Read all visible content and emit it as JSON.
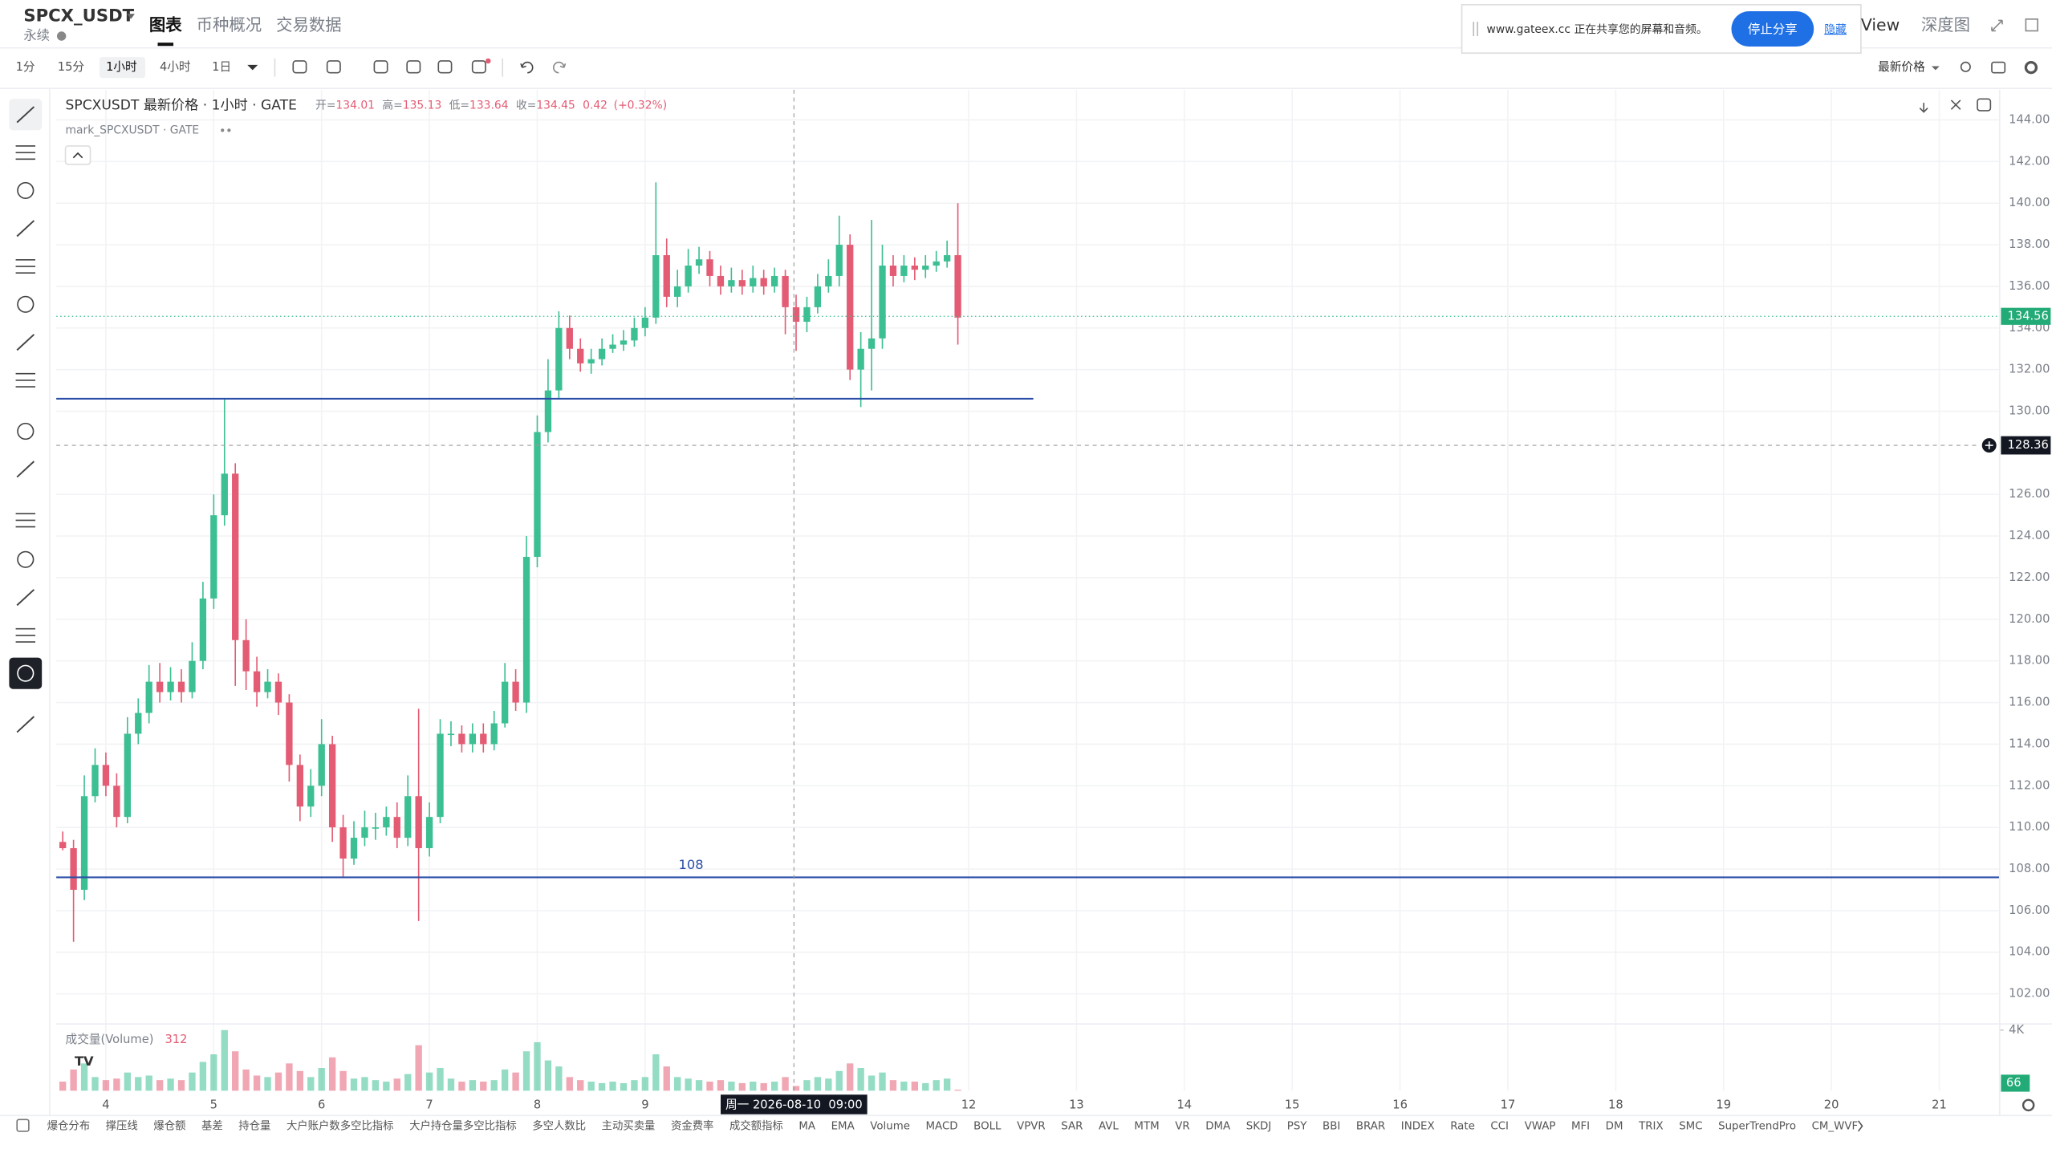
{
  "header": {
    "symbol": "SPCX_USDT",
    "contract": "永续",
    "tabs": [
      "图表",
      "币种概况",
      "交易数据"
    ],
    "share_text": "www.gateex.cc 正在共享您的屏幕和音频。",
    "stop_share": "停止分享",
    "hide": "隐藏",
    "view": "View",
    "depth": "深度图"
  },
  "toolbar": {
    "intervals": [
      "1分",
      "15分",
      "1小时",
      "4小时",
      "1日"
    ],
    "active_interval": "1小时",
    "price_type": "最新价格"
  },
  "legend": {
    "title": "SPCXUSDT 最新价格 · 1小时 · GATE",
    "o_label": "开=",
    "o": 134.01,
    "h_label": "高=",
    "h": 135.13,
    "l_label": "低=",
    "l": 133.64,
    "c_label": "收=",
    "c": 134.45,
    "change": 0.42,
    "change_pct": "(+0.32%)",
    "mark": "mark_SPCXUSDT · GATE",
    "volume_title": "成交量(Volume)"
  },
  "indicators": [
    "爆仓分布",
    "撑压线",
    "爆仓额",
    "基差",
    "持仓量",
    "大户账户数多空比指标",
    "大户持仓量多空比指标",
    "多空人数比",
    "主动买卖量",
    "资金费率",
    "成交额指标",
    "MA",
    "EMA",
    "Volume",
    "MACD",
    "BOLL",
    "VPVR",
    "SAR",
    "AVL",
    "MTM",
    "VR",
    "DMA",
    "SKDJ",
    "PSY",
    "BBI",
    "BRAR",
    "INDEX",
    "Rate",
    "CCI",
    "VWAP",
    "MFI",
    "DM",
    "TRIX",
    "SMC",
    "SuperTrendPro",
    "CM_WVF"
  ],
  "chart_data": {
    "type": "candlestick",
    "up_color": "#3dbf94",
    "down_color": "#e35c74",
    "grid": true,
    "xlim": [
      3.54,
      21.56
    ],
    "xticks": [
      4,
      5,
      6,
      7,
      8,
      9,
      12,
      13,
      14,
      15,
      16,
      17,
      18,
      19,
      20,
      21
    ],
    "ylim": [
      100.55,
      145.45
    ],
    "yticks": [
      {
        "value": 102,
        "label": "102.00"
      },
      {
        "value": 104,
        "label": "104.00"
      },
      {
        "value": 106,
        "label": "106.00"
      },
      {
        "value": 108,
        "label": "108.00"
      },
      {
        "value": 110,
        "label": "110.00"
      },
      {
        "value": 112,
        "label": "112.00"
      },
      {
        "value": 114,
        "label": "114.00"
      },
      {
        "value": 116,
        "label": "116.00"
      },
      {
        "value": 118,
        "label": "118.00"
      },
      {
        "value": 120,
        "label": "120.00"
      },
      {
        "value": 122,
        "label": "122.00"
      },
      {
        "value": 124,
        "label": "124.00"
      },
      {
        "value": 126,
        "label": "126.00"
      },
      {
        "value": 130,
        "label": "130.00"
      },
      {
        "value": 132,
        "label": "132.00"
      },
      {
        "value": 134,
        "label": "134.00"
      },
      {
        "value": 136,
        "label": "136.00"
      },
      {
        "value": 138,
        "label": "138.00"
      },
      {
        "value": 140,
        "label": "140.00"
      },
      {
        "value": 142,
        "label": "142.00"
      },
      {
        "value": 144,
        "label": "144.00"
      }
    ],
    "vlim": [
      0,
      4400
    ],
    "vticks": [
      {
        "value": 4000,
        "label": "4K"
      }
    ],
    "last_price": 134.56,
    "levels": [
      {
        "value": 130.6,
        "x_end": 12.6,
        "color": "#2b4fa8"
      },
      {
        "value": 107.6,
        "label": "108",
        "color": "#2b4fa8"
      }
    ],
    "crosshair": {
      "x": 10.38,
      "price": 128.36,
      "time_label": "周一 2026-08-10  09:00"
    },
    "x": [
      3.6,
      3.7,
      3.8,
      3.9,
      4.0,
      4.1,
      4.2,
      4.3,
      4.4,
      4.5,
      4.6,
      4.7,
      4.8,
      4.9,
      5.0,
      5.1,
      5.2,
      5.3,
      5.4,
      5.5,
      5.6,
      5.7,
      5.8,
      5.9,
      6.0,
      6.1,
      6.2,
      6.3,
      6.4,
      6.5,
      6.6,
      6.7,
      6.8,
      6.9,
      7.0,
      7.1,
      7.2,
      7.3,
      7.4,
      7.5,
      7.6,
      7.7,
      7.8,
      7.9,
      8.0,
      8.1,
      8.2,
      8.3,
      8.4,
      8.5,
      8.6,
      8.7,
      8.8,
      8.9,
      9.0,
      9.1,
      9.2,
      9.3,
      9.4,
      9.5,
      9.6,
      9.7,
      9.8,
      9.9,
      10.0,
      10.1,
      10.2,
      10.3,
      10.4,
      10.5,
      10.6,
      10.7,
      10.8,
      10.9,
      11.0,
      11.1,
      11.2,
      11.3,
      11.4,
      11.5,
      11.6,
      11.7,
      11.8,
      11.9
    ],
    "open": [
      109.3,
      109,
      107,
      111.5,
      113,
      112,
      110.5,
      114.5,
      115.5,
      117,
      116.5,
      117,
      116.5,
      118,
      121,
      125,
      127,
      119,
      117.5,
      116.5,
      117,
      116,
      113,
      111,
      112,
      114,
      110,
      108.5,
      109.5,
      110,
      110,
      110.5,
      109.5,
      111.5,
      109,
      110.5,
      114.5,
      114.5,
      114,
      114.5,
      114,
      115,
      117,
      116,
      123,
      129,
      131,
      134,
      133,
      132.3,
      132.5,
      133,
      133.2,
      133.4,
      134,
      134.5,
      137.5,
      135.5,
      136,
      137,
      137.3,
      136.5,
      136,
      136.3,
      136,
      136.4,
      136,
      136.5,
      135,
      134.3,
      135,
      136,
      136.5,
      138,
      132,
      133,
      133.5,
      137,
      136.5,
      137,
      136.8,
      137,
      137.2,
      137.5
    ],
    "high": [
      109.8,
      109.4,
      112.5,
      113.8,
      113.6,
      112.6,
      115.3,
      116.2,
      117.8,
      117.9,
      117.7,
      117.6,
      118.9,
      121.8,
      126,
      130.6,
      127.5,
      120,
      118.2,
      117.6,
      117.4,
      116.4,
      113.5,
      112.8,
      115.2,
      114.4,
      110.6,
      110.3,
      110.8,
      110.7,
      111,
      111.2,
      112.5,
      115.7,
      111.2,
      115.2,
      115.1,
      114.9,
      115,
      115,
      115.6,
      117.9,
      117.6,
      124,
      129.8,
      132.5,
      134.8,
      134.6,
      133.5,
      133,
      133.5,
      133.7,
      133.9,
      134.5,
      135,
      141,
      138.3,
      136.8,
      137.8,
      137.9,
      137.7,
      137,
      136.9,
      136.8,
      137,
      136.8,
      136.9,
      136.8,
      135.6,
      135.5,
      136.6,
      137.3,
      139.4,
      138.5,
      133.8,
      139.2,
      138,
      137.5,
      137.5,
      137.4,
      137.5,
      137.7,
      138.2,
      140
    ],
    "low": [
      108.9,
      104.5,
      106.5,
      111.2,
      111.5,
      110,
      110.2,
      114,
      115,
      116,
      116.1,
      116,
      116.2,
      117.6,
      120.5,
      124.5,
      116.8,
      116.6,
      115.8,
      116.2,
      115.4,
      112.2,
      110.3,
      110.5,
      111.5,
      109.3,
      107.6,
      108.2,
      109.1,
      109.4,
      109.6,
      109,
      109.1,
      105.5,
      108.6,
      110.2,
      113.9,
      113.6,
      113.6,
      113.6,
      113.7,
      114.8,
      115.6,
      115.5,
      122.5,
      128.5,
      130.6,
      132.5,
      131.9,
      131.8,
      132.2,
      132.8,
      132.9,
      133.1,
      133.6,
      134.2,
      135,
      135,
      135.7,
      136.6,
      136,
      135.6,
      135.7,
      135.6,
      135.7,
      135.6,
      135.7,
      133.7,
      132.9,
      133.8,
      134.7,
      135.7,
      136,
      131.5,
      130.2,
      131,
      133,
      136,
      136.2,
      136.3,
      136.4,
      136.7,
      136.9,
      133.2
    ],
    "close": [
      109,
      107,
      111.5,
      113,
      112,
      110.5,
      114.5,
      115.5,
      117,
      116.5,
      117,
      116.5,
      118,
      121,
      125,
      127,
      119,
      117.5,
      116.5,
      117,
      116,
      113,
      111,
      112,
      114,
      110,
      108.5,
      109.5,
      110,
      110,
      110.5,
      109.5,
      111.5,
      109,
      110.5,
      114.5,
      114.5,
      114,
      114.5,
      114,
      115,
      117,
      116,
      123,
      129,
      131,
      134,
      133,
      132.3,
      132.5,
      133,
      133.2,
      133.4,
      134,
      134.5,
      137.5,
      135.5,
      136,
      137,
      137.3,
      136.5,
      136,
      136.3,
      136,
      136.4,
      136,
      136.5,
      135,
      134.3,
      135,
      136,
      136.5,
      138,
      132,
      133,
      133.5,
      137,
      136.5,
      137,
      136.8,
      137,
      137.2,
      137.5,
      134.5
    ],
    "volume": [
      600,
      1400,
      1800,
      900,
      700,
      800,
      1200,
      900,
      1000,
      700,
      800,
      700,
      1200,
      1900,
      2400,
      4000,
      2600,
      1400,
      1000,
      900,
      1200,
      1800,
      1300,
      900,
      1500,
      2200,
      1300,
      800,
      900,
      700,
      600,
      800,
      1100,
      3000,
      1200,
      1500,
      800,
      600,
      700,
      600,
      700,
      1400,
      1200,
      2600,
      3200,
      2000,
      1600,
      900,
      700,
      600,
      500,
      600,
      500,
      700,
      900,
      2400,
      1600,
      900,
      800,
      700,
      600,
      700,
      600,
      500,
      600,
      500,
      600,
      900,
      312,
      700,
      900,
      800,
      1300,
      1800,
      1500,
      1000,
      1200,
      700,
      600,
      600,
      500,
      700,
      800,
      66
    ]
  }
}
